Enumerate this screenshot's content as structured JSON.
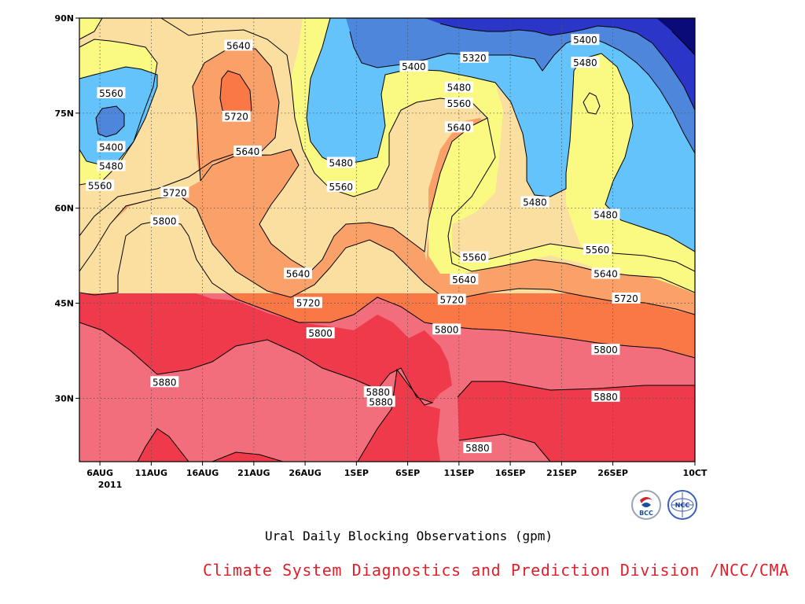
{
  "chart_data": {
    "type": "heatmap",
    "title": "Ural Daily Blocking Observations (gpm)",
    "xlabel": "",
    "ylabel": "",
    "x_tick_labels": [
      "6AUG",
      "11AUG",
      "16AUG",
      "21AUG",
      "26AUG",
      "1SEP",
      "6SEP",
      "11SEP",
      "16SEP",
      "21SEP",
      "26SEP",
      "10CT"
    ],
    "x_year_label": "2011",
    "y_tick_labels": [
      "30N",
      "45N",
      "60N",
      "75N",
      "90N"
    ],
    "y_ticks": [
      30,
      45,
      60,
      75,
      90
    ],
    "ylim": [
      20,
      90
    ],
    "x_range_days": [
      0,
      60
    ],
    "contour_levels": [
      5320,
      5400,
      5480,
      5560,
      5640,
      5720,
      5800,
      5880
    ],
    "level_colors": [
      "#0a0a78",
      "#2b36c8",
      "#4e86dc",
      "#64c3fa",
      "#fafa82",
      "#fadfa0",
      "#faa069",
      "#fa7846",
      "#f36e7c",
      "#ee3a4a"
    ],
    "contour_labels": [
      {
        "text": "5560",
        "day": 3.1,
        "lat": 78.1
      },
      {
        "text": "5400",
        "day": 3.1,
        "lat": 69.6
      },
      {
        "text": "5480",
        "day": 3.1,
        "lat": 66.6
      },
      {
        "text": "5560",
        "day": 2.0,
        "lat": 63.5
      },
      {
        "text": "5720",
        "day": 9.3,
        "lat": 62.4
      },
      {
        "text": "5800",
        "day": 8.3,
        "lat": 57.9
      },
      {
        "text": "5880",
        "day": 8.3,
        "lat": 32.5
      },
      {
        "text": "5640",
        "day": 15.5,
        "lat": 85.6
      },
      {
        "text": "5720",
        "day": 15.3,
        "lat": 74.4
      },
      {
        "text": "5640",
        "day": 16.4,
        "lat": 68.9
      },
      {
        "text": "5640",
        "day": 21.3,
        "lat": 49.6
      },
      {
        "text": "5720",
        "day": 22.3,
        "lat": 45.0
      },
      {
        "text": "5800",
        "day": 23.5,
        "lat": 40.2
      },
      {
        "text": "5480",
        "day": 25.5,
        "lat": 67.1
      },
      {
        "text": "5560",
        "day": 25.5,
        "lat": 63.3
      },
      {
        "text": "5400",
        "day": 32.6,
        "lat": 82.3
      },
      {
        "text": "5320",
        "day": 38.5,
        "lat": 83.7
      },
      {
        "text": "5480",
        "day": 37.0,
        "lat": 79.0
      },
      {
        "text": "5560",
        "day": 37.0,
        "lat": 76.5
      },
      {
        "text": "5640",
        "day": 37.0,
        "lat": 72.7
      },
      {
        "text": "5880",
        "day": 29.1,
        "lat": 30.9
      },
      {
        "text": "5880",
        "day": 29.4,
        "lat": 29.4
      },
      {
        "text": "5640",
        "day": 37.5,
        "lat": 48.7
      },
      {
        "text": "5720",
        "day": 36.3,
        "lat": 45.5
      },
      {
        "text": "5800",
        "day": 35.8,
        "lat": 40.8
      },
      {
        "text": "5560",
        "day": 38.5,
        "lat": 52.2
      },
      {
        "text": "5880",
        "day": 38.8,
        "lat": 22.1
      },
      {
        "text": "5480",
        "day": 44.4,
        "lat": 60.9
      },
      {
        "text": "5400",
        "day": 49.3,
        "lat": 86.5
      },
      {
        "text": "5480",
        "day": 49.3,
        "lat": 82.9
      },
      {
        "text": "5480",
        "day": 51.3,
        "lat": 58.9
      },
      {
        "text": "5560",
        "day": 50.5,
        "lat": 53.4
      },
      {
        "text": "5640",
        "day": 51.3,
        "lat": 49.6
      },
      {
        "text": "5720",
        "day": 53.3,
        "lat": 45.7
      },
      {
        "text": "5800",
        "day": 51.3,
        "lat": 37.6
      },
      {
        "text": "5880",
        "day": 51.3,
        "lat": 30.2
      }
    ]
  },
  "caption": "Ural Daily Blocking Observations (gpm)",
  "credit": "Climate System Diagnostics and Prediction Division /NCC/CMA",
  "logos": {
    "bcc_text": "BCC",
    "ncc_text": "NCC"
  },
  "colors": {
    "credit": "#e0202a",
    "frame": "#000000"
  }
}
